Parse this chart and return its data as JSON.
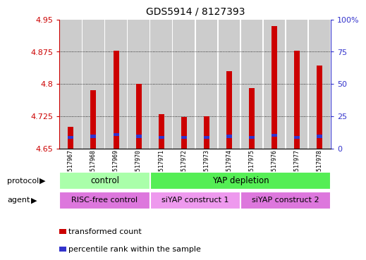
{
  "title": "GDS5914 / 8127393",
  "samples": [
    "GSM1517967",
    "GSM1517968",
    "GSM1517969",
    "GSM1517970",
    "GSM1517971",
    "GSM1517972",
    "GSM1517973",
    "GSM1517974",
    "GSM1517975",
    "GSM1517976",
    "GSM1517977",
    "GSM1517978"
  ],
  "transformed_counts": [
    4.7,
    4.785,
    4.878,
    4.8,
    4.73,
    4.723,
    4.724,
    4.83,
    4.79,
    4.935,
    4.878,
    4.843
  ],
  "percentile_values": [
    4.675,
    4.678,
    4.682,
    4.678,
    4.676,
    4.675,
    4.675,
    4.678,
    4.676,
    4.681,
    4.676,
    4.678
  ],
  "bar_bottom": 4.65,
  "ylim_left": [
    4.65,
    4.95
  ],
  "ylim_right": [
    0,
    100
  ],
  "yticks_left": [
    4.65,
    4.725,
    4.8,
    4.875,
    4.95
  ],
  "yticks_right": [
    0,
    25,
    50,
    75,
    100
  ],
  "ytick_labels_left": [
    "4.65",
    "4.725",
    "4.8",
    "4.875",
    "4.95"
  ],
  "ytick_labels_right": [
    "0",
    "25",
    "50",
    "75",
    "100%"
  ],
  "bar_color": "#cc0000",
  "percentile_color": "#3333cc",
  "col_bg_color": "#cccccc",
  "plot_bg": "#ffffff",
  "grid_color": "#000000",
  "protocol_groups": [
    {
      "label": "control",
      "start": 0,
      "end": 3,
      "color": "#aaffaa"
    },
    {
      "label": "YAP depletion",
      "start": 4,
      "end": 11,
      "color": "#55ee55"
    }
  ],
  "agent_groups": [
    {
      "label": "RISC-free control",
      "start": 0,
      "end": 3,
      "color": "#dd77dd"
    },
    {
      "label": "siYAP construct 1",
      "start": 4,
      "end": 7,
      "color": "#ee99ee"
    },
    {
      "label": "siYAP construct 2",
      "start": 8,
      "end": 11,
      "color": "#dd77dd"
    }
  ],
  "legend_items": [
    {
      "label": "transformed count",
      "color": "#cc0000"
    },
    {
      "label": "percentile rank within the sample",
      "color": "#3333cc"
    }
  ],
  "left_axis_color": "#cc0000",
  "right_axis_color": "#3333cc",
  "bar_width": 0.25
}
